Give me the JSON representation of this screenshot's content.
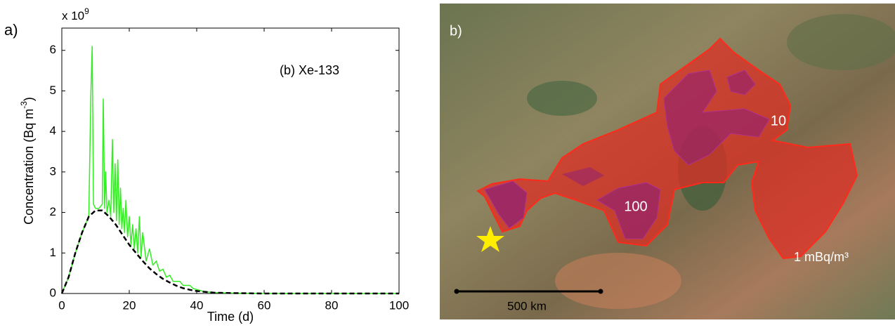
{
  "chart_data": {
    "type": "line",
    "panel_label": "a)",
    "title": "(b) Xe-133",
    "y_multiplier": {
      "base": "x 10",
      "power": "9"
    },
    "y_label": {
      "text": "Concentration (Bq m",
      "power": "-3",
      "close": ")"
    },
    "x_label": "Time (d)",
    "xlim": [
      0,
      100
    ],
    "xticks": [
      0,
      20,
      40,
      60,
      80,
      100
    ],
    "ylim": [
      0,
      6.55
    ],
    "yticks": [
      0,
      1,
      2,
      3,
      4,
      5,
      6
    ],
    "series": [
      {
        "color": "#33ee22",
        "dash": false,
        "x": [
          0,
          2,
          4,
          6,
          8,
          8.6,
          9,
          9.4,
          10,
          11,
          12,
          12.3,
          12.7,
          13,
          13.4,
          14,
          14.5,
          15,
          15.4,
          15.8,
          16.2,
          16.6,
          17,
          17.4,
          17.8,
          18.2,
          18.6,
          19,
          19.5,
          20,
          20.5,
          21,
          21.5,
          22,
          22.5,
          23,
          23.5,
          24,
          25,
          26,
          27,
          28,
          29,
          30,
          31,
          32,
          33,
          35,
          36,
          38,
          39,
          40,
          42,
          45,
          50,
          60,
          80,
          100
        ],
        "values": [
          0,
          0.4,
          1.0,
          1.5,
          1.9,
          4.9,
          6.1,
          2.2,
          2.1,
          2.1,
          2.2,
          4.8,
          2.1,
          3.0,
          2.0,
          2.3,
          1.9,
          3.8,
          2.0,
          3.2,
          1.8,
          3.3,
          1.7,
          2.6,
          1.6,
          2.1,
          1.5,
          2.3,
          1.4,
          1.9,
          1.2,
          1.7,
          1.1,
          1.6,
          1.0,
          1.9,
          0.9,
          1.5,
          0.8,
          1.1,
          0.7,
          0.8,
          0.55,
          0.6,
          0.4,
          0.45,
          0.3,
          0.3,
          0.2,
          0.2,
          0.12,
          0.1,
          0.05,
          0.02,
          0.01,
          0,
          0,
          0
        ]
      },
      {
        "color": "#000000",
        "dash": true,
        "x": [
          0,
          2,
          4,
          6,
          8,
          10,
          12,
          14,
          16,
          18,
          20,
          22,
          24,
          26,
          28,
          30,
          32,
          34,
          36,
          38,
          40,
          45,
          50,
          60,
          80,
          100
        ],
        "values": [
          0,
          0.4,
          1.0,
          1.5,
          1.9,
          2.05,
          2.05,
          1.9,
          1.7,
          1.45,
          1.2,
          1.0,
          0.8,
          0.62,
          0.48,
          0.36,
          0.27,
          0.19,
          0.13,
          0.09,
          0.06,
          0.02,
          0.01,
          0,
          0,
          0
        ]
      }
    ]
  },
  "map": {
    "panel_label": "b)",
    "contour_10": "10",
    "contour_100": "100",
    "contour_1": "1 mBq/m³",
    "scale_label": "500 km"
  }
}
